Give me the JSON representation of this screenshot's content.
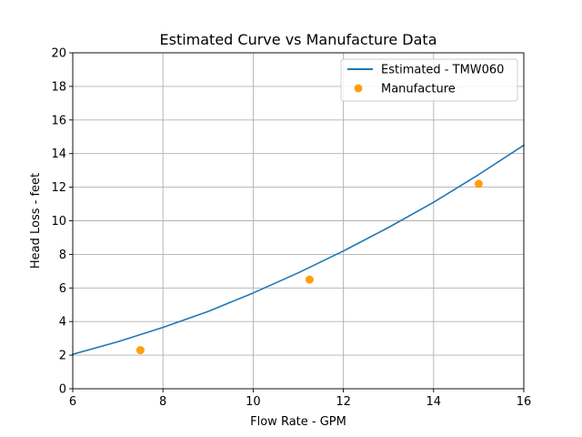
{
  "chart_data": {
    "type": "line",
    "title": "Estimated Curve vs Manufacture Data",
    "xlabel": "Flow Rate - GPM",
    "ylabel": "Head Loss - feet",
    "xlim": [
      6,
      16
    ],
    "ylim": [
      0,
      20
    ],
    "xticks": [
      6,
      8,
      10,
      12,
      14,
      16
    ],
    "yticks": [
      0,
      2,
      4,
      6,
      8,
      10,
      12,
      14,
      16,
      18,
      20
    ],
    "grid": true,
    "legend_position": "top-right",
    "series": [
      {
        "name": "Estimated - TMW060",
        "kind": "line",
        "color": "#1f77b4",
        "x": [
          6,
          7,
          8,
          9,
          10,
          11,
          12,
          13,
          14,
          15,
          16
        ],
        "y": [
          2.05,
          2.8,
          3.65,
          4.6,
          5.7,
          6.9,
          8.2,
          9.6,
          11.1,
          12.75,
          14.5
        ]
      },
      {
        "name": "Manufacture",
        "kind": "scatter",
        "color": "#ff9f0e",
        "x": [
          7.5,
          11.25,
          15
        ],
        "y": [
          2.3,
          6.5,
          12.2
        ]
      }
    ]
  }
}
